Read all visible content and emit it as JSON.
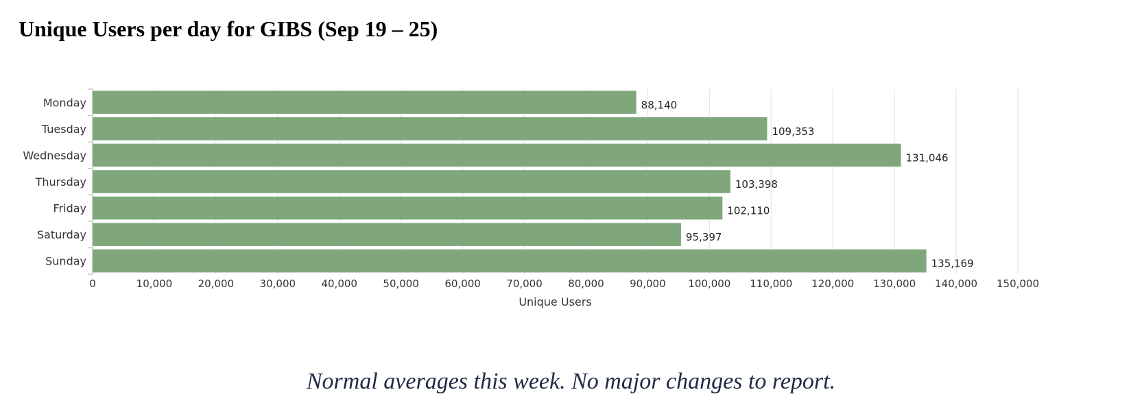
{
  "chart_data": {
    "type": "bar",
    "orientation": "horizontal",
    "title": "Unique Users per day for GIBS (Sep 19 – 25)",
    "categories": [
      "Monday",
      "Tuesday",
      "Wednesday",
      "Thursday",
      "Friday",
      "Saturday",
      "Sunday"
    ],
    "values": [
      88140,
      109353,
      131046,
      103398,
      102110,
      95397,
      135169
    ],
    "value_labels": [
      "88,140",
      "109,353",
      "131,046",
      "103,398",
      "102,110",
      "95,397",
      "135,169"
    ],
    "xlabel": "Unique Users",
    "ylabel": "",
    "xlim": [
      0,
      150000
    ],
    "x_ticks": [
      0,
      10000,
      20000,
      30000,
      40000,
      50000,
      60000,
      70000,
      80000,
      90000,
      100000,
      110000,
      120000,
      130000,
      140000,
      150000
    ],
    "x_tick_labels": [
      "0",
      "10,000",
      "20,000",
      "30,000",
      "40,000",
      "50,000",
      "60,000",
      "70,000",
      "80,000",
      "90,000",
      "100,000",
      "110,000",
      "120,000",
      "130,000",
      "140,000",
      "150,000"
    ],
    "grid": true,
    "legend": "none",
    "bar_color": "#7fa77b"
  },
  "note": "Normal averages this week.  No major changes to report."
}
